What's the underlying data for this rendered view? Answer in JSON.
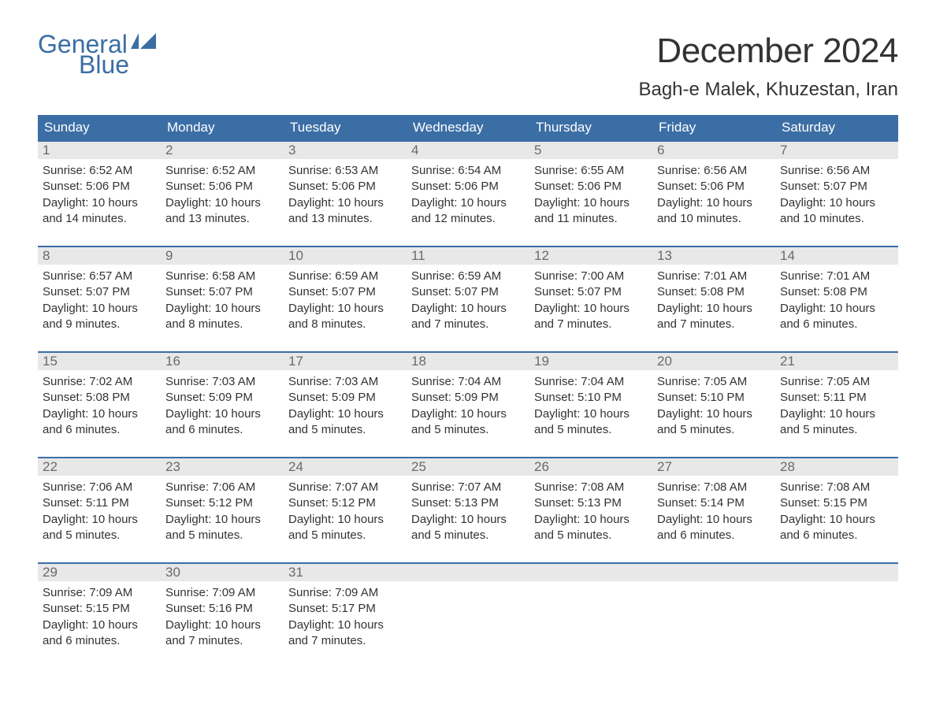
{
  "logo": {
    "line1": "General",
    "line2": "Blue"
  },
  "colors": {
    "header_bg": "#3b6ea5",
    "header_text": "#ffffff",
    "daynum_bg": "#e8e8e8",
    "daynum_text": "#6a6a6a",
    "body_text": "#333333",
    "week_border": "#3b6ea5",
    "logo_color": "#3b6ea5",
    "page_bg": "#ffffff"
  },
  "title": "December 2024",
  "location": "Bagh-e Malek, Khuzestan, Iran",
  "weekdays": [
    "Sunday",
    "Monday",
    "Tuesday",
    "Wednesday",
    "Thursday",
    "Friday",
    "Saturday"
  ],
  "weeks": [
    [
      {
        "day": "1",
        "sunrise": "Sunrise: 6:52 AM",
        "sunset": "Sunset: 5:06 PM",
        "dl1": "Daylight: 10 hours",
        "dl2": "and 14 minutes."
      },
      {
        "day": "2",
        "sunrise": "Sunrise: 6:52 AM",
        "sunset": "Sunset: 5:06 PM",
        "dl1": "Daylight: 10 hours",
        "dl2": "and 13 minutes."
      },
      {
        "day": "3",
        "sunrise": "Sunrise: 6:53 AM",
        "sunset": "Sunset: 5:06 PM",
        "dl1": "Daylight: 10 hours",
        "dl2": "and 13 minutes."
      },
      {
        "day": "4",
        "sunrise": "Sunrise: 6:54 AM",
        "sunset": "Sunset: 5:06 PM",
        "dl1": "Daylight: 10 hours",
        "dl2": "and 12 minutes."
      },
      {
        "day": "5",
        "sunrise": "Sunrise: 6:55 AM",
        "sunset": "Sunset: 5:06 PM",
        "dl1": "Daylight: 10 hours",
        "dl2": "and 11 minutes."
      },
      {
        "day": "6",
        "sunrise": "Sunrise: 6:56 AM",
        "sunset": "Sunset: 5:06 PM",
        "dl1": "Daylight: 10 hours",
        "dl2": "and 10 minutes."
      },
      {
        "day": "7",
        "sunrise": "Sunrise: 6:56 AM",
        "sunset": "Sunset: 5:07 PM",
        "dl1": "Daylight: 10 hours",
        "dl2": "and 10 minutes."
      }
    ],
    [
      {
        "day": "8",
        "sunrise": "Sunrise: 6:57 AM",
        "sunset": "Sunset: 5:07 PM",
        "dl1": "Daylight: 10 hours",
        "dl2": "and 9 minutes."
      },
      {
        "day": "9",
        "sunrise": "Sunrise: 6:58 AM",
        "sunset": "Sunset: 5:07 PM",
        "dl1": "Daylight: 10 hours",
        "dl2": "and 8 minutes."
      },
      {
        "day": "10",
        "sunrise": "Sunrise: 6:59 AM",
        "sunset": "Sunset: 5:07 PM",
        "dl1": "Daylight: 10 hours",
        "dl2": "and 8 minutes."
      },
      {
        "day": "11",
        "sunrise": "Sunrise: 6:59 AM",
        "sunset": "Sunset: 5:07 PM",
        "dl1": "Daylight: 10 hours",
        "dl2": "and 7 minutes."
      },
      {
        "day": "12",
        "sunrise": "Sunrise: 7:00 AM",
        "sunset": "Sunset: 5:07 PM",
        "dl1": "Daylight: 10 hours",
        "dl2": "and 7 minutes."
      },
      {
        "day": "13",
        "sunrise": "Sunrise: 7:01 AM",
        "sunset": "Sunset: 5:08 PM",
        "dl1": "Daylight: 10 hours",
        "dl2": "and 7 minutes."
      },
      {
        "day": "14",
        "sunrise": "Sunrise: 7:01 AM",
        "sunset": "Sunset: 5:08 PM",
        "dl1": "Daylight: 10 hours",
        "dl2": "and 6 minutes."
      }
    ],
    [
      {
        "day": "15",
        "sunrise": "Sunrise: 7:02 AM",
        "sunset": "Sunset: 5:08 PM",
        "dl1": "Daylight: 10 hours",
        "dl2": "and 6 minutes."
      },
      {
        "day": "16",
        "sunrise": "Sunrise: 7:03 AM",
        "sunset": "Sunset: 5:09 PM",
        "dl1": "Daylight: 10 hours",
        "dl2": "and 6 minutes."
      },
      {
        "day": "17",
        "sunrise": "Sunrise: 7:03 AM",
        "sunset": "Sunset: 5:09 PM",
        "dl1": "Daylight: 10 hours",
        "dl2": "and 5 minutes."
      },
      {
        "day": "18",
        "sunrise": "Sunrise: 7:04 AM",
        "sunset": "Sunset: 5:09 PM",
        "dl1": "Daylight: 10 hours",
        "dl2": "and 5 minutes."
      },
      {
        "day": "19",
        "sunrise": "Sunrise: 7:04 AM",
        "sunset": "Sunset: 5:10 PM",
        "dl1": "Daylight: 10 hours",
        "dl2": "and 5 minutes."
      },
      {
        "day": "20",
        "sunrise": "Sunrise: 7:05 AM",
        "sunset": "Sunset: 5:10 PM",
        "dl1": "Daylight: 10 hours",
        "dl2": "and 5 minutes."
      },
      {
        "day": "21",
        "sunrise": "Sunrise: 7:05 AM",
        "sunset": "Sunset: 5:11 PM",
        "dl1": "Daylight: 10 hours",
        "dl2": "and 5 minutes."
      }
    ],
    [
      {
        "day": "22",
        "sunrise": "Sunrise: 7:06 AM",
        "sunset": "Sunset: 5:11 PM",
        "dl1": "Daylight: 10 hours",
        "dl2": "and 5 minutes."
      },
      {
        "day": "23",
        "sunrise": "Sunrise: 7:06 AM",
        "sunset": "Sunset: 5:12 PM",
        "dl1": "Daylight: 10 hours",
        "dl2": "and 5 minutes."
      },
      {
        "day": "24",
        "sunrise": "Sunrise: 7:07 AM",
        "sunset": "Sunset: 5:12 PM",
        "dl1": "Daylight: 10 hours",
        "dl2": "and 5 minutes."
      },
      {
        "day": "25",
        "sunrise": "Sunrise: 7:07 AM",
        "sunset": "Sunset: 5:13 PM",
        "dl1": "Daylight: 10 hours",
        "dl2": "and 5 minutes."
      },
      {
        "day": "26",
        "sunrise": "Sunrise: 7:08 AM",
        "sunset": "Sunset: 5:13 PM",
        "dl1": "Daylight: 10 hours",
        "dl2": "and 5 minutes."
      },
      {
        "day": "27",
        "sunrise": "Sunrise: 7:08 AM",
        "sunset": "Sunset: 5:14 PM",
        "dl1": "Daylight: 10 hours",
        "dl2": "and 6 minutes."
      },
      {
        "day": "28",
        "sunrise": "Sunrise: 7:08 AM",
        "sunset": "Sunset: 5:15 PM",
        "dl1": "Daylight: 10 hours",
        "dl2": "and 6 minutes."
      }
    ],
    [
      {
        "day": "29",
        "sunrise": "Sunrise: 7:09 AM",
        "sunset": "Sunset: 5:15 PM",
        "dl1": "Daylight: 10 hours",
        "dl2": "and 6 minutes."
      },
      {
        "day": "30",
        "sunrise": "Sunrise: 7:09 AM",
        "sunset": "Sunset: 5:16 PM",
        "dl1": "Daylight: 10 hours",
        "dl2": "and 7 minutes."
      },
      {
        "day": "31",
        "sunrise": "Sunrise: 7:09 AM",
        "sunset": "Sunset: 5:17 PM",
        "dl1": "Daylight: 10 hours",
        "dl2": "and 7 minutes."
      },
      {
        "day": "",
        "sunrise": "",
        "sunset": "",
        "dl1": "",
        "dl2": ""
      },
      {
        "day": "",
        "sunrise": "",
        "sunset": "",
        "dl1": "",
        "dl2": ""
      },
      {
        "day": "",
        "sunrise": "",
        "sunset": "",
        "dl1": "",
        "dl2": ""
      },
      {
        "day": "",
        "sunrise": "",
        "sunset": "",
        "dl1": "",
        "dl2": ""
      }
    ]
  ]
}
